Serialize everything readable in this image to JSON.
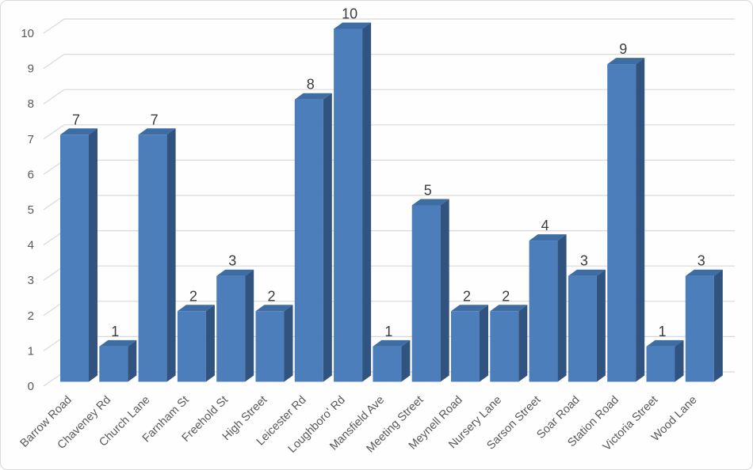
{
  "chart_data": {
    "type": "bar",
    "style": "3d-column",
    "title": "",
    "xlabel": "",
    "ylabel": "",
    "categories": [
      "Barrow Road",
      "Chaveney Rd",
      "Church Lane",
      "Farnham St",
      "Freehold St",
      "High Street",
      "Leicester Rd",
      "Loughboro' Rd",
      "Mansfield Ave",
      "Meeting Street",
      "Meynell Road",
      "Nursery Lane",
      "Sarson Street",
      "Soar Road",
      "Station Road",
      "Victoria Street",
      "Wood Lane"
    ],
    "values": [
      7,
      1,
      7,
      2,
      3,
      2,
      8,
      10,
      1,
      5,
      2,
      2,
      4,
      3,
      9,
      1,
      3
    ],
    "data_labels_shown": true,
    "ylim": [
      0,
      10
    ],
    "yticks": [
      0,
      1,
      2,
      3,
      4,
      5,
      6,
      7,
      8,
      9,
      10
    ],
    "grid": true,
    "legend": false,
    "x_label_rotation_deg": 45,
    "colors": {
      "bar_front": "#4B7EBB",
      "bar_top": "#3D6DA3",
      "bar_side": "#305380",
      "gridline": "#D9D9D9",
      "tick_label": "#595959",
      "category_label": "#595959",
      "data_label": "#3C3C3C",
      "chart_border": "#D9D9D9",
      "background": "#FEFEFE"
    }
  }
}
